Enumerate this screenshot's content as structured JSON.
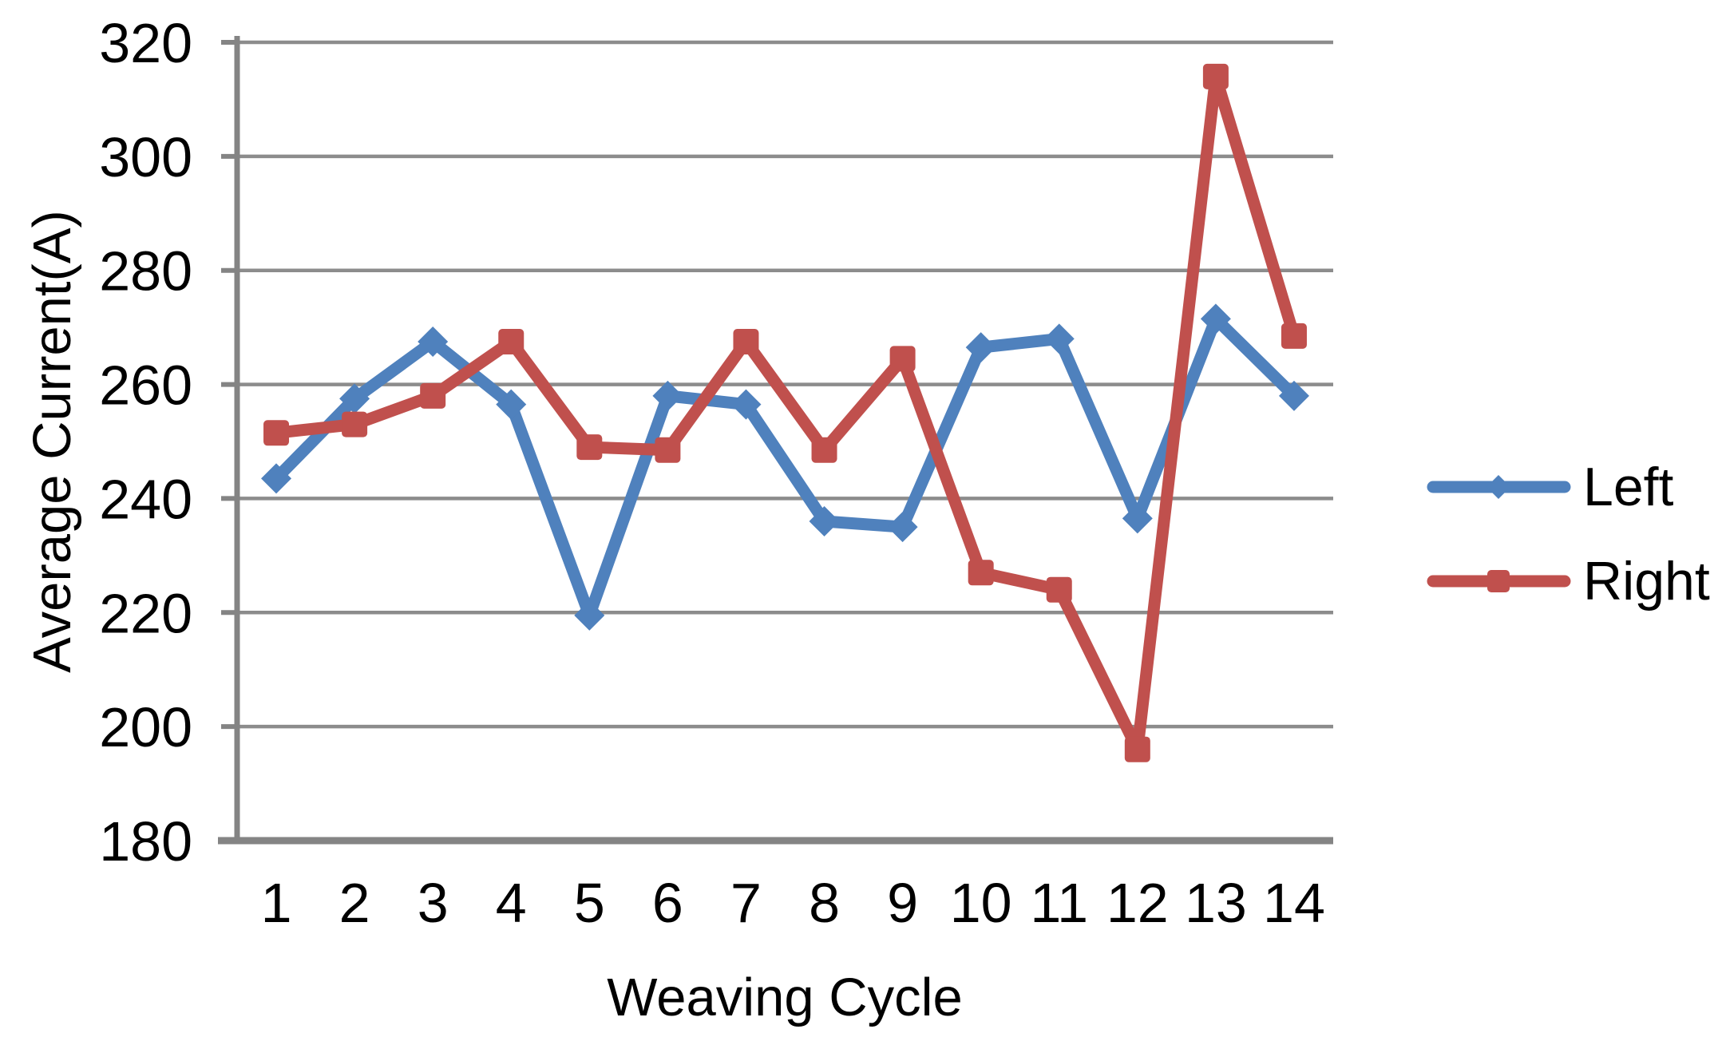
{
  "chart_data": {
    "type": "line",
    "title": "",
    "xlabel": "Weaving Cycle",
    "ylabel": "Average Current(A)",
    "categories": [
      "1",
      "2",
      "3",
      "4",
      "5",
      "6",
      "7",
      "8",
      "9",
      "10",
      "11",
      "12",
      "13",
      "14"
    ],
    "series": [
      {
        "name": "Left",
        "color": "#4F81BD",
        "marker": "diamond",
        "values": [
          243.5,
          257.5,
          267.5,
          256.5,
          219.5,
          258,
          256.5,
          236,
          235,
          266.5,
          268,
          236.5,
          271.5,
          258
        ]
      },
      {
        "name": "Right",
        "color": "#C0504D",
        "marker": "square",
        "values": [
          251.5,
          253,
          258,
          267.5,
          249,
          248.5,
          267.5,
          248.5,
          264.5,
          227,
          224,
          196,
          314,
          268.5
        ]
      }
    ],
    "ylim": [
      180,
      320
    ],
    "yticks": [
      180,
      200,
      220,
      240,
      260,
      280,
      300,
      320
    ],
    "grid": "horizontal-only",
    "legend_position": "right",
    "legend_labels": [
      "Left",
      "Right"
    ],
    "colors": {
      "gridline": "#8C8C8C",
      "axis": "#848484",
      "text": "#000000",
      "background": "#FFFFFF"
    }
  }
}
